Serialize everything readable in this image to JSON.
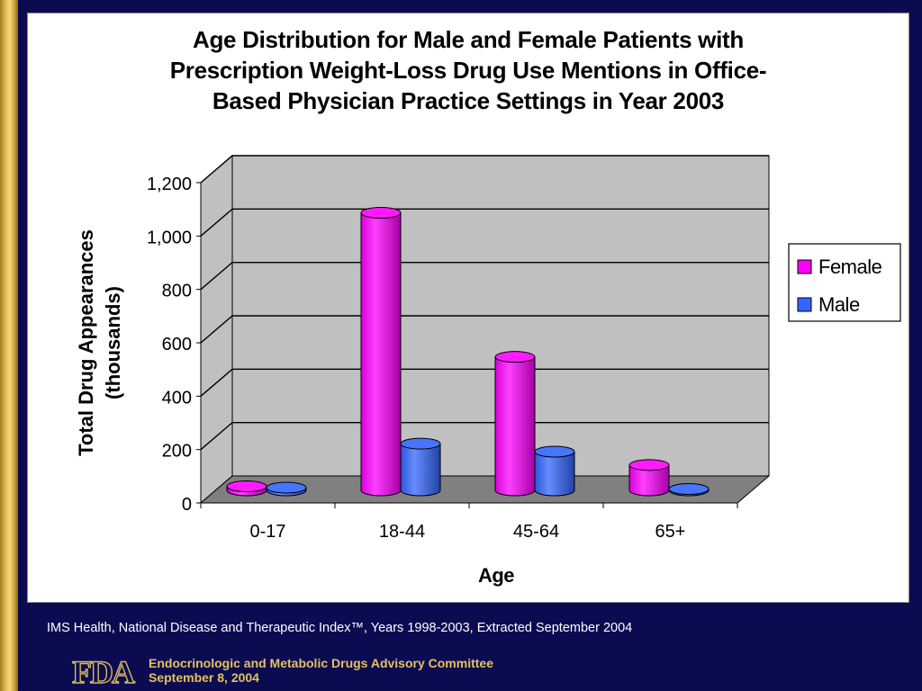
{
  "chart_data": {
    "type": "bar",
    "title_lines": [
      "Age Distribution for Male and Female Patients with",
      "Prescription Weight-Loss Drug Use Mentions in Office-",
      "Based Physician Practice Settings in Year 2003"
    ],
    "xlabel": "Age",
    "ylabel_lines": [
      "Total Drug Appearances",
      "(thousands)"
    ],
    "categories": [
      "0-17",
      "18-44",
      "45-64",
      "65+"
    ],
    "series": [
      {
        "name": "Female",
        "color": "#ff00ff",
        "values": [
          15,
          1040,
          500,
          95
        ]
      },
      {
        "name": "Male",
        "color": "#3366ff",
        "values": [
          10,
          175,
          145,
          5
        ]
      }
    ],
    "ylim": [
      0,
      1200
    ],
    "yticks": [
      0,
      200,
      400,
      600,
      800,
      1000,
      1200
    ],
    "ytick_labels": [
      "0",
      "200",
      "400",
      "600",
      "800",
      "1,000",
      "1,200"
    ],
    "grid": true,
    "legend_position": "right",
    "wall_color": "#c0c0c0",
    "floor_color": "#808080"
  },
  "footer": {
    "source": "IMS Health, National Disease and Therapeutic Index™, Years 1998-2003, Extracted September 2004",
    "logo_text": "FDA",
    "committee": "Endocrinologic and Metabolic Drugs Advisory Committee",
    "date": "September 8, 2004"
  }
}
